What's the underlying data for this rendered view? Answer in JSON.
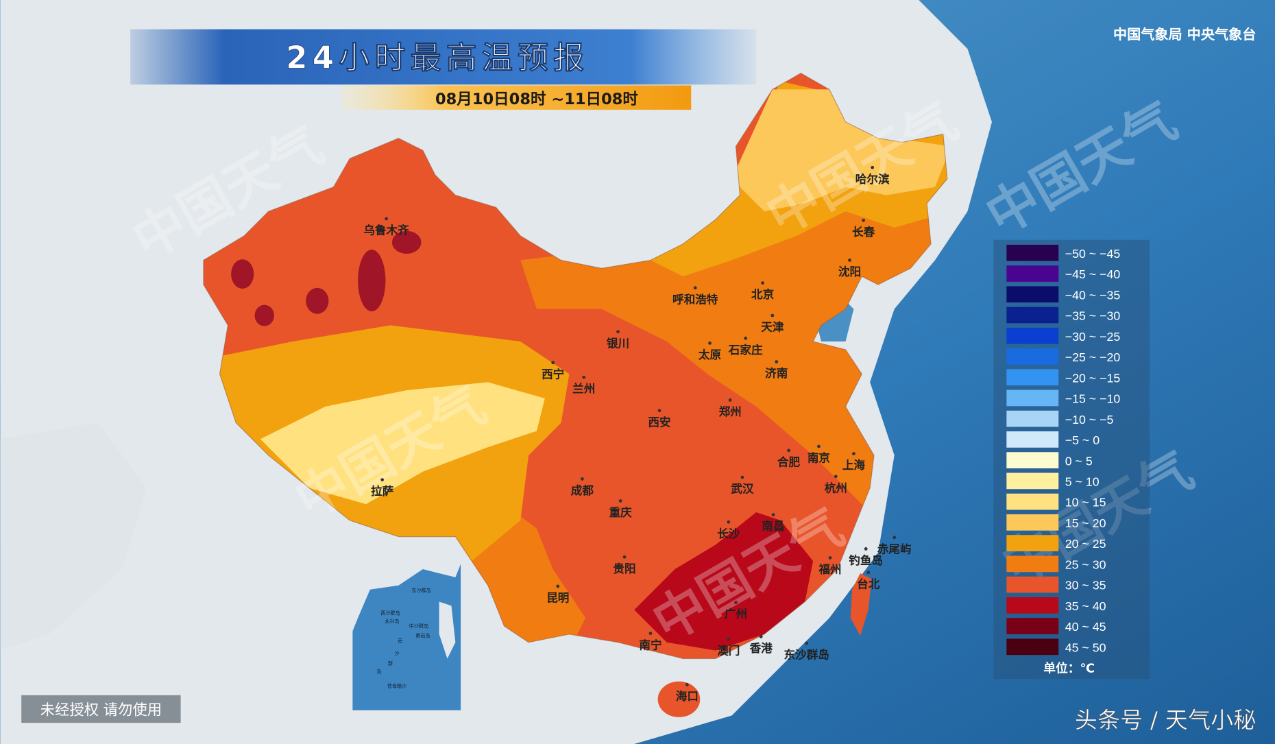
{
  "header": {
    "title": "24小时最高温预报",
    "time_range": "08月10日08时 ~11日08时",
    "agency": "中国气象局 中央气象台"
  },
  "footer": {
    "notice": "未经授权 请勿使用",
    "source": "头条号 / 天气小秘"
  },
  "watermark": "中国天气",
  "cities": [
    "乌鲁木齐",
    "哈尔滨",
    "长春",
    "沈阳",
    "呼和浩特",
    "北京",
    "天津",
    "银川",
    "太原",
    "石家庄",
    "济南",
    "西宁",
    "兰州",
    "西安",
    "郑州",
    "合肥",
    "南京",
    "上海",
    "拉萨",
    "成都",
    "重庆",
    "武汉",
    "杭州",
    "长沙",
    "南昌",
    "贵阳",
    "福州",
    "钓鱼岛",
    "赤尾屿",
    "台北",
    "昆明",
    "广州",
    "南宁",
    "澳门",
    "香港",
    "东沙群岛",
    "海口"
  ],
  "inset": {
    "labels": [
      "东沙群岛",
      "西沙群岛",
      "永兴岛",
      "中沙群岛",
      "黄岩岛",
      "南",
      "沙",
      "群",
      "岛",
      "曾母暗沙"
    ]
  },
  "legend": {
    "unit": "单位：℃",
    "items": [
      {
        "label": "−50 ~ −45",
        "color": "#2a0050"
      },
      {
        "label": "−45 ~ −40",
        "color": "#4a0590"
      },
      {
        "label": "−40 ~ −35",
        "color": "#0a0e6a"
      },
      {
        "label": "−35 ~ −30",
        "color": "#0a2290"
      },
      {
        "label": "−30 ~ −25",
        "color": "#0a3fd0"
      },
      {
        "label": "−25 ~ −20",
        "color": "#1a6ae0"
      },
      {
        "label": "−20 ~ −15",
        "color": "#3393f0"
      },
      {
        "label": "−15 ~ −10",
        "color": "#66b5f5"
      },
      {
        "label": "−10 ~ −5",
        "color": "#a8d4f5"
      },
      {
        "label": "−5 ~ 0",
        "color": "#cfe9fb"
      },
      {
        "label": "0 ~ 5",
        "color": "#fffbd0"
      },
      {
        "label": "5 ~ 10",
        "color": "#fff0a0"
      },
      {
        "label": "10 ~ 15",
        "color": "#ffe180"
      },
      {
        "label": "15 ~ 20",
        "color": "#fdc85a"
      },
      {
        "label": "20 ~ 25",
        "color": "#f2a20e"
      },
      {
        "label": "25 ~ 30",
        "color": "#f07c12"
      },
      {
        "label": "30 ~ 35",
        "color": "#e8552a"
      },
      {
        "label": "35 ~ 40",
        "color": "#b8081a"
      },
      {
        "label": "40 ~ 45",
        "color": "#7a0018"
      },
      {
        "label": "45 ~ 50",
        "color": "#4a0010"
      }
    ]
  }
}
